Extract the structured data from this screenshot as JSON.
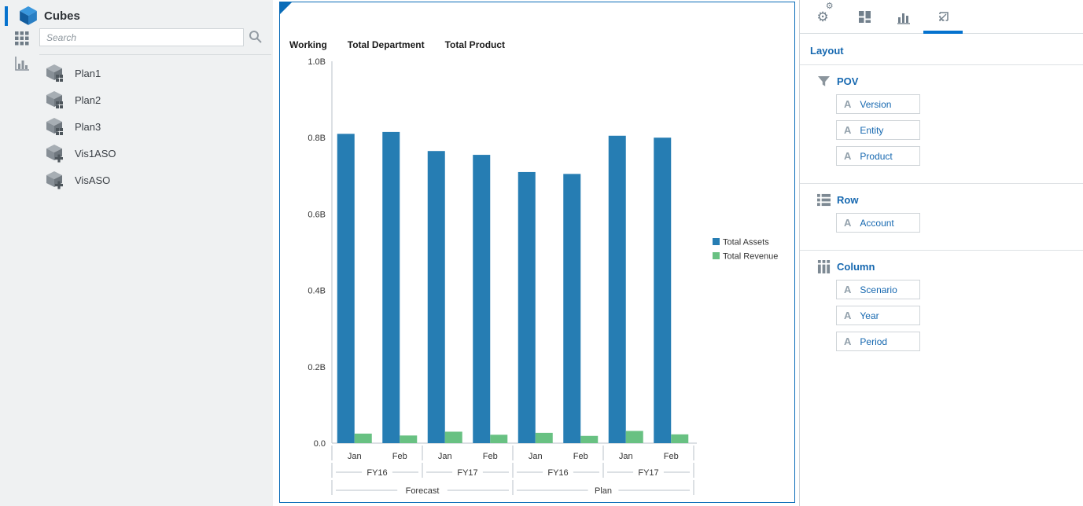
{
  "colors": {
    "accent": "#0572ce",
    "panel_border": "#0a6cb8",
    "link_blue": "#1668b0",
    "bar_blue": "#267db3",
    "bar_green": "#68c182",
    "sidebar_bg": "#eff1f2"
  },
  "sidebar": {
    "title": "Cubes",
    "logo_icon": "cube-logo",
    "search": {
      "placeholder": "Search",
      "icon": "search-icon"
    },
    "rail": [
      {
        "icon": "grid-icon"
      },
      {
        "icon": "bar-chart-icon"
      }
    ],
    "items": [
      {
        "label": "Plan1",
        "icon": "cube-grid-icon"
      },
      {
        "label": "Plan2",
        "icon": "cube-grid-icon"
      },
      {
        "label": "Plan3",
        "icon": "cube-grid-icon"
      },
      {
        "label": "Vis1ASO",
        "icon": "cube-plus-icon"
      },
      {
        "label": "VisASO",
        "icon": "cube-plus-icon"
      }
    ]
  },
  "chart_panel": {
    "pov_headers": [
      "Working",
      "Total Department",
      "Total Product"
    ]
  },
  "chart_data": {
    "type": "bar",
    "title": "",
    "xlabel": "",
    "ylabel": "",
    "categories": [
      "Jan",
      "Feb",
      "Jan",
      "Feb",
      "Jan",
      "Feb",
      "Jan",
      "Feb"
    ],
    "category_groups": [
      {
        "label": "FY16",
        "span": 2
      },
      {
        "label": "FY17",
        "span": 2
      },
      {
        "label": "FY16",
        "span": 2
      },
      {
        "label": "FY17",
        "span": 2
      }
    ],
    "top_groups": [
      {
        "label": "Forecast",
        "span": 4
      },
      {
        "label": "Plan",
        "span": 4
      }
    ],
    "series": [
      {
        "name": "Total Assets",
        "color": "#267db3",
        "values": [
          0.81,
          0.815,
          0.765,
          0.755,
          0.71,
          0.705,
          0.805,
          0.8
        ]
      },
      {
        "name": "Total Revenue",
        "color": "#68c182",
        "values": [
          0.025,
          0.02,
          0.03,
          0.022,
          0.027,
          0.019,
          0.032,
          0.023
        ]
      }
    ],
    "ylim": [
      0,
      1.0
    ],
    "unit": "B",
    "ytick_labels": [
      "1.0B",
      "0.8B",
      "0.6B",
      "0.4B",
      "0.2B",
      "0.0"
    ],
    "grid": false,
    "legend_position": "right"
  },
  "right_panel": {
    "tabs": [
      {
        "icon": "gears-icon",
        "selected": false
      },
      {
        "icon": "blocks-icon",
        "selected": false
      },
      {
        "icon": "chart-icon",
        "selected": false
      },
      {
        "icon": "layout-frame-icon",
        "selected": true
      }
    ],
    "title": "Layout",
    "sections": [
      {
        "icon": "funnel-icon",
        "label": "POV",
        "fields": [
          {
            "type_letter": "A",
            "label": "Version"
          },
          {
            "type_letter": "A",
            "label": "Entity"
          },
          {
            "type_letter": "A",
            "label": "Product"
          }
        ]
      },
      {
        "icon": "rows-icon",
        "label": "Row",
        "fields": [
          {
            "type_letter": "A",
            "label": "Account"
          }
        ]
      },
      {
        "icon": "columns-icon",
        "label": "Column",
        "fields": [
          {
            "type_letter": "A",
            "label": "Scenario"
          },
          {
            "type_letter": "A",
            "label": "Year"
          },
          {
            "type_letter": "A",
            "label": "Period"
          }
        ]
      }
    ]
  }
}
